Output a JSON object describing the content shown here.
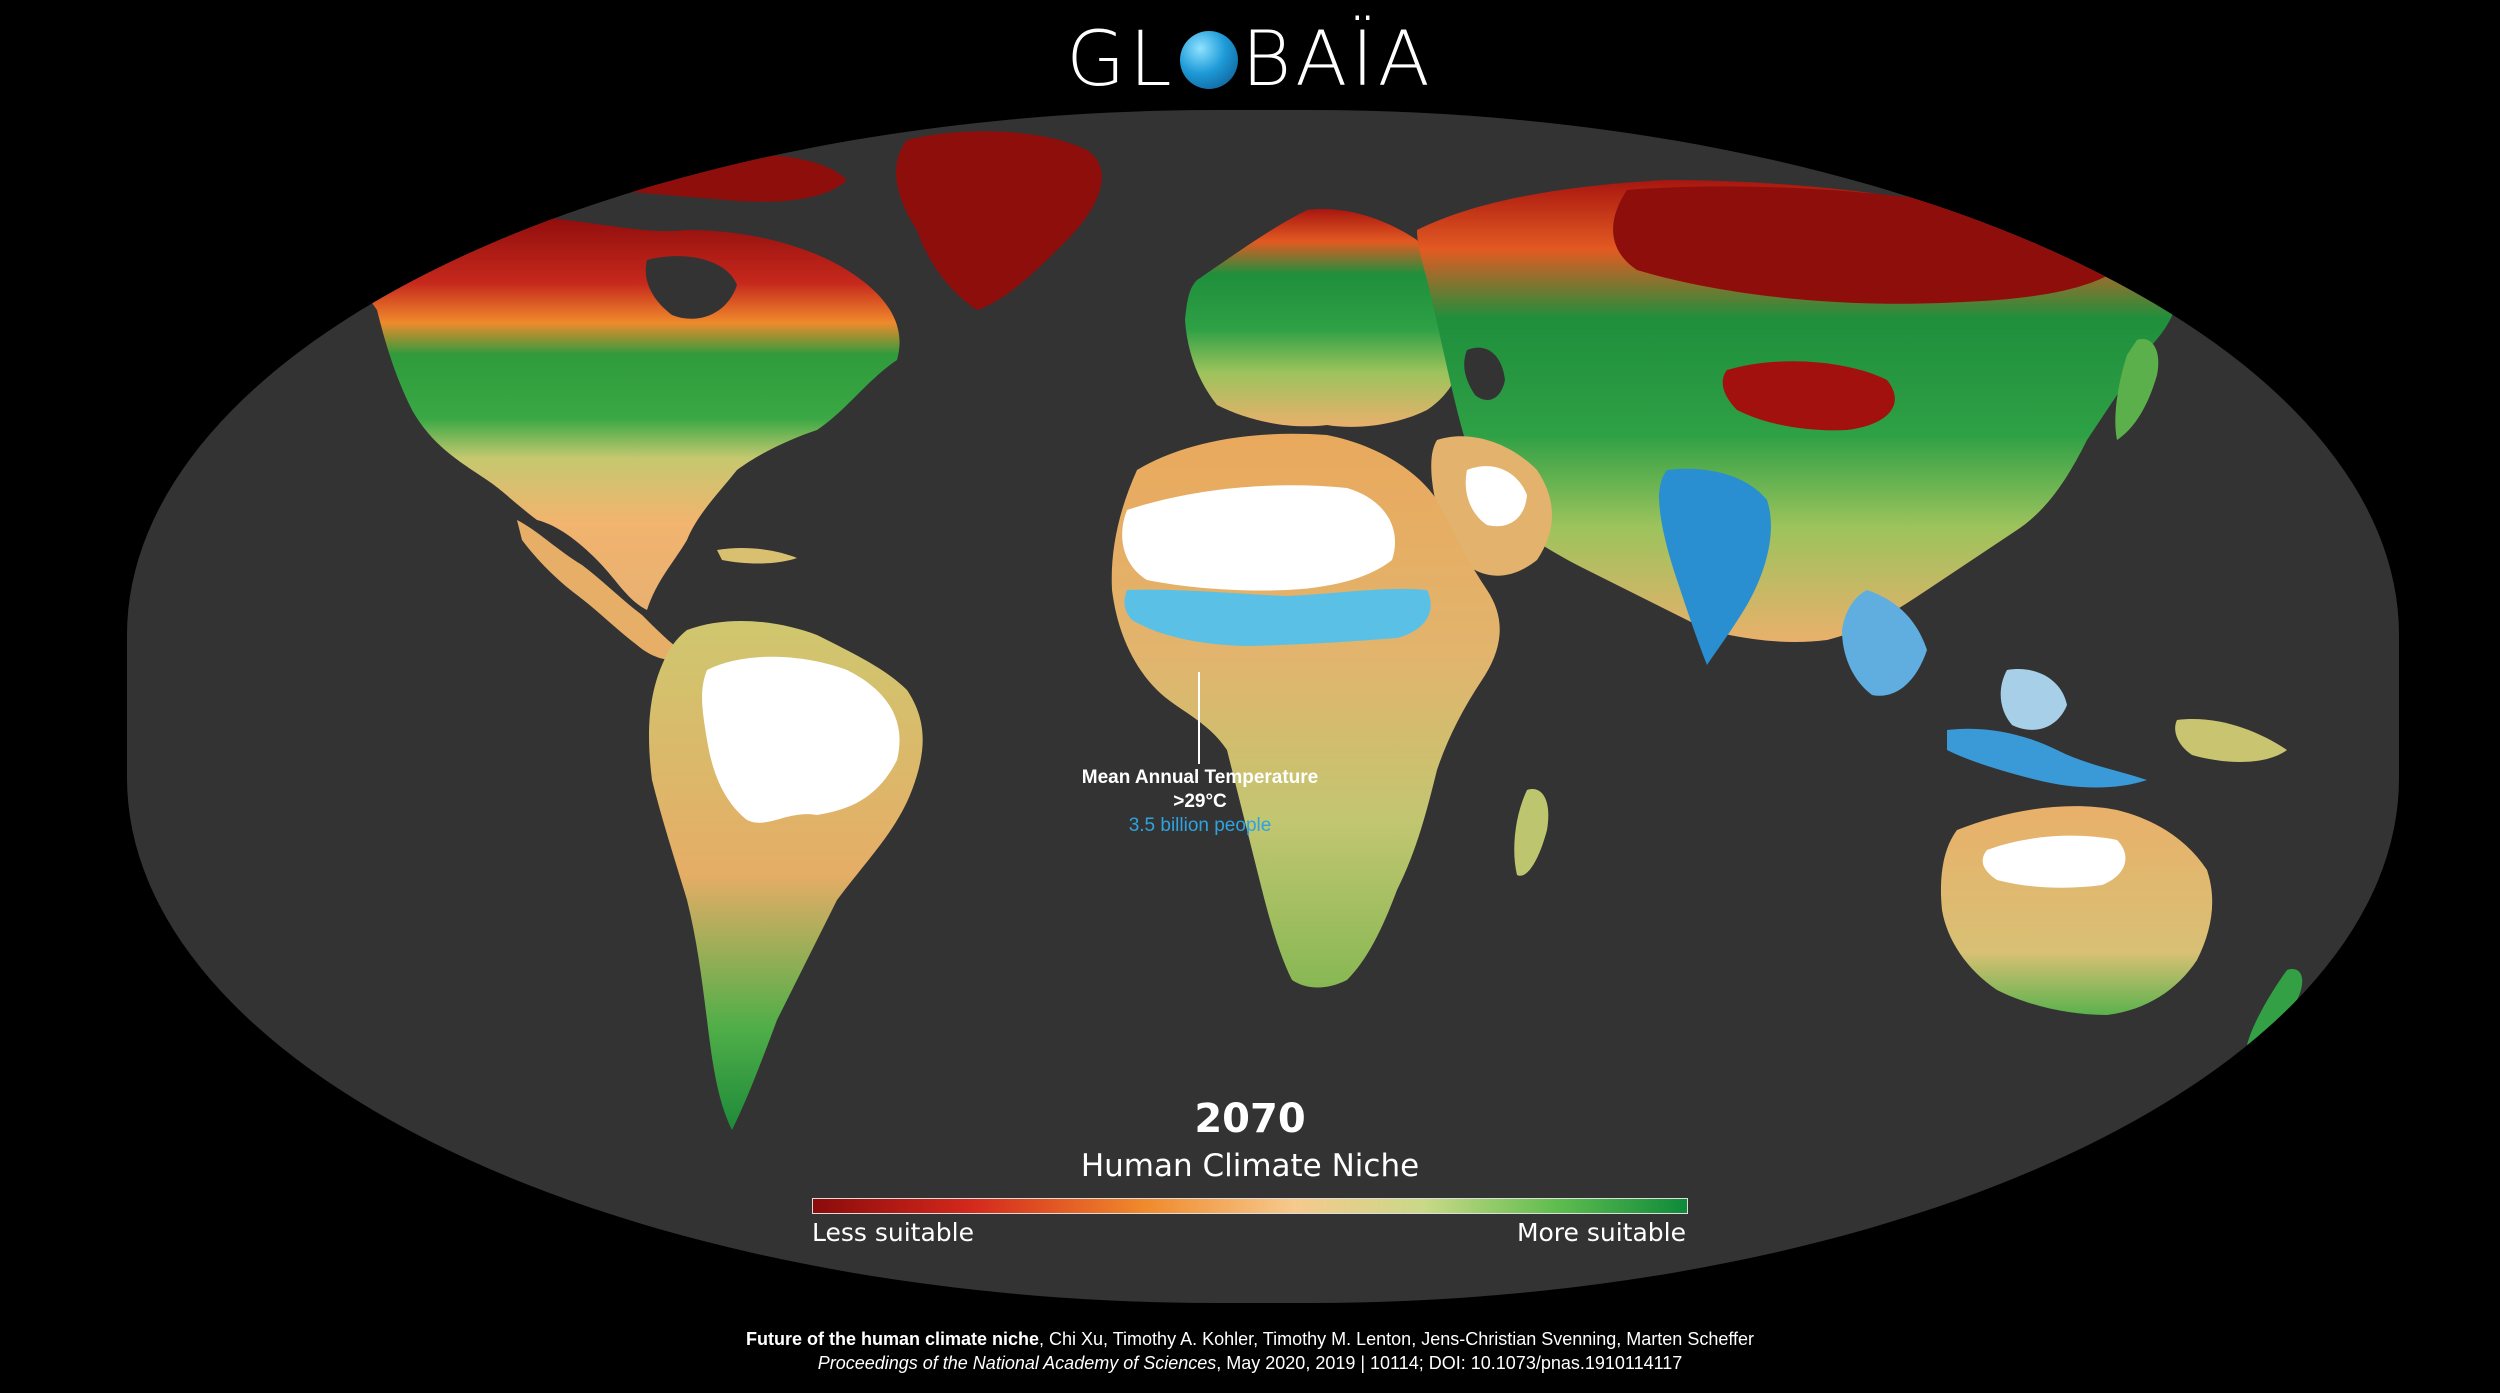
{
  "logo": {
    "prefix": "GL",
    "suffix": "BAÏA",
    "globe_icon": "globe-icon"
  },
  "callout": {
    "line1": "Mean Annual Temperature",
    "line2": ">29°C",
    "line3": "3.5 billion people"
  },
  "legend": {
    "year": "2070",
    "title": "Human Climate Niche",
    "left_label": "Less suitable",
    "right_label": "More suitable",
    "gradient_colors": [
      "#8b0b0b",
      "#d4281c",
      "#f08a2c",
      "#f6c98d",
      "#c9d987",
      "#5fbd4f",
      "#0e8a3a"
    ]
  },
  "citation": {
    "title": "Future of the human climate niche",
    "authors": ", Chi Xu, Timothy A. Kohler, Timothy M. Lenton, Jens-Christian Svenning, Marten Scheffer",
    "journal": "Proceedings of the National Academy of Sciences",
    "details": ", May 2020, 2019 | 10114; DOI: 10.1073/pnas.1910114117"
  },
  "colors": {
    "ocean": "#333333",
    "background": "#000000",
    "extreme_heat": "#ffffff",
    "hot_zone": "#2ea3e0"
  }
}
